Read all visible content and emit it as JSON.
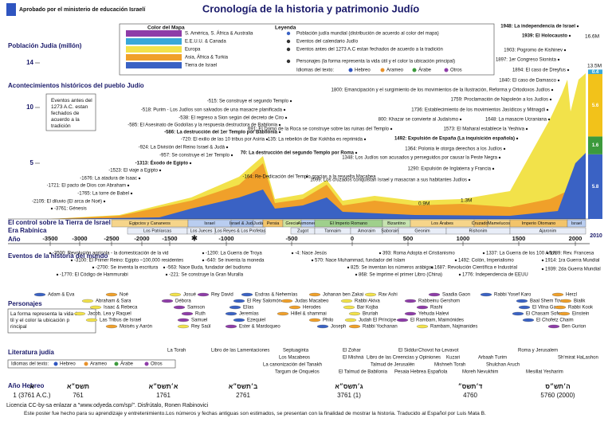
{
  "header": {
    "approval": "Aprobado por el ministerio de educación Israelí",
    "title": "Cronología de la historia y patrimonio Judío"
  },
  "legend": {
    "map_title": "Color del Mapa",
    "legend_title": "Leyenda",
    "regions": [
      {
        "label": "S. América, S. África & Australia",
        "color": "#8e3ca8"
      },
      {
        "label": "E.E.U.U. & Canada",
        "color": "#39a8d8"
      },
      {
        "label": "Europa",
        "color": "#f2e24a"
      },
      {
        "label": "Asia, África & Turkia",
        "color": "#f0a02a"
      },
      {
        "label": "Tierra de Israel",
        "color": "#3a62c4"
      }
    ],
    "items": [
      "Población judía mundial (distribución de acuerdo al color del mapa)",
      "Eventos del calendario Judío",
      "Eventos antes del 1273 A.C estan fechados de acuerdo a la tradición",
      "Personajes (la forma representa la vida útil y el color la ubicación principal)"
    ],
    "languages_label": "Idiomas del texto:",
    "languages": [
      {
        "label": "Hebreo",
        "color": "#2f55c0"
      },
      {
        "label": "Arameo",
        "color": "#e8912a"
      },
      {
        "label": "Árabe",
        "color": "#3c9a3c"
      },
      {
        "label": "Otros",
        "color": "#8e3ca8"
      }
    ]
  },
  "population": {
    "label": "Población Judía (millón)",
    "ticks": [
      14,
      10,
      5
    ],
    "labels": [
      "16.6M",
      "13.5M",
      "1.3M",
      "0.9M"
    ],
    "bar": [
      {
        "value": 5.8,
        "color": "#3a62c4"
      },
      {
        "value": 1.6,
        "color": "#3c9a3c"
      },
      {
        "value": 5.6,
        "color": "#f2c21a"
      },
      {
        "value": 0.4,
        "color": "#39a8d8"
      }
    ],
    "year": "2010"
  },
  "events": {
    "label": "Acontecimientos históricos del pueblo Judío",
    "note": "Eventos antes del 1273 A.C. estan fechados de acuerdo a la tradición",
    "items": [
      "1948: La independencia de Israel",
      "1939: El Holocausto",
      "1903: Pogromo de Kishinev",
      "1897: 1er Congreso Sionista",
      "1894: El caso de Dreyfus",
      "1840: El caso de Damasco",
      "1800: Emancipación y el surgimiento de los movimientos de la Ilustración, Reforma y Ortodoxos Judíos",
      "1759: Proclamación de Napoleón a los Judíos",
      "1736: Establecimiento de los movimientos Jasídicos y Mitnagdi",
      "1648: La masacre Ucraniana",
      "1573: El Maharal establece la Yeshiva",
      "1492: Expulsión de España (La inquisición española)",
      "1364: Polonia le otorga derechos a los Judíos",
      "1348: Los Judíos son acusados y perseguidos por causar la Peste Negra",
      "1290: Expulsión de Inglaterra y Francia",
      "1099: Los cruzados conquistan Israel y masacran a sus habitantes Judíos",
      "800: Khazar se convierte al Judaísmo",
      "691: El Domo de la Roca se construye sobre las ruinas del Templo",
      "135: La rebelión de Bar Kokhba es reprimida",
      "70: La destrucción del segundo Templo por Roma",
      "-164: Re-Dedicación del Templo gracias a la revuelta Macabea",
      "-515: Se construye el segundo Templo",
      "-518: Purim - Los Judíos son salvados de una masacre planificada",
      "-538: El regreso a Sion según del decreto de Ciro",
      "-585: El Asesinato de Godolías y la respuesta destructora de Babilonia",
      "-586: La destrucción del 1er Templo por Babilonia",
      "-720: El exilio de las 10 tribus por Asiria",
      "-924: La División del Reino Israel & Judá",
      "-957: Se construye el 1er Templo",
      "-1313: Éxodo de Egipto",
      "-1523: El viaje a Egipto",
      "-1676: La atadura de Isaac",
      "-1721: El pacto de Dios con Abraham",
      "-1765: La torre de Babel",
      "-2105: El diluvio (El arca de Noé)",
      "-3761: Génesis"
    ]
  },
  "control": {
    "label": "El control sobre la Tierra de Israel",
    "periods": [
      {
        "name": "Egipcios y Cananeos",
        "color": "#f6d58a"
      },
      {
        "name": "Israel",
        "color": "#b9cdf0"
      },
      {
        "name": "Israel & Judá",
        "color": "#a9c0ea"
      },
      {
        "name": "Judá",
        "color": "#c8d6f2"
      },
      {
        "name": "Persia",
        "color": "#f3c46a"
      },
      {
        "name": "Grecia",
        "color": "#cfe4a0"
      },
      {
        "name": "Asmoneos",
        "color": "#b9cdf0"
      },
      {
        "name": "El Imperio Romano",
        "color": "#9fd08c"
      },
      {
        "name": "Bizantino",
        "color": "#c6e3b0"
      },
      {
        "name": "Los Árabes",
        "color": "#f6d58a"
      },
      {
        "name": "Cruzados",
        "color": "#f3c46a"
      },
      {
        "name": "Mamelucos",
        "color": "#f6d58a"
      },
      {
        "name": "Imperio Otomano",
        "color": "#f3c46a"
      },
      {
        "name": "Israel",
        "color": "#b9cdf0"
      }
    ]
  },
  "eras": {
    "label": "Era Rabínica",
    "items": [
      "Los Patriarcas",
      "Los Jueces",
      "Los Reyes & Los Profetas",
      "Zugot",
      "Tannaim",
      "Amoraim",
      "Saboraim",
      "Geonim",
      "Rishonim",
      "Ajaronim"
    ]
  },
  "years": {
    "label": "Año",
    "ticks": [
      -3500,
      -3000,
      -2500,
      -2000,
      -1500,
      -1000,
      -500,
      0,
      500,
      1000,
      1500,
      2000
    ]
  },
  "world": {
    "label": "Eventos de la historia del mundo",
    "items": [
      "-3500: Revolución agrícola - la domesticación de la vid",
      "-3100: El Primer Reino: Egipto ~100,000 residentes",
      "-2700: Se inventa la escritura",
      "-1770: El Código de Hammurabi",
      "-1200: La Guerra de Troya",
      "-640: Se inventa la moneda",
      "-563: Nace Buda, fundador del budismo",
      "-221: Se construye la Gran Muralla",
      "-4: Nace Jesús",
      "570: Nace Muhammad, fundador del Islam",
      "825: Se inventan los números arábigos",
      "868: Se imprime el primer Libro (China)",
      "393: Roma Adopta el Cristianismo",
      "1337: La Guerra de los 100 Años",
      "1492: Colón, Imperialismo",
      "1687: Revolución Científica e Industrial",
      "1776: Independencia de EEUU",
      "1789: Rev. Francesa",
      "1914: 1ra Guerra Mundial",
      "1939: 2da Guerra Mundial"
    ]
  },
  "people": {
    "label": "Personajes",
    "note": "La forma representa la vida útil y el color la ubicación principal",
    "names": [
      "Adam & Eva",
      "Noé",
      "Josué",
      "Rey David",
      "Esdras & Nehemías",
      "Johanan ben Zakai",
      "Rav Ashi",
      "Saadia Gaon",
      "Rabbi Yosef Karo",
      "Herzl",
      "Abraham & Sara",
      "Débora",
      "El Rey Salomón",
      "Judas Macabeo",
      "Rabbi Akiva",
      "Rabbeinu Gershom",
      "Baal Shem Tov",
      "Bialik",
      "Isaac & Rebeca",
      "Samson",
      "Elías",
      "Herodes",
      "Bar Kojba",
      "Rashi",
      "El Vilna Gaon",
      "Rabbi Kook",
      "Jacob, Lea y Raquel",
      "Ruth",
      "Jeremías",
      "Hillel & shammai",
      "Bruriah",
      "Yehuda Halevi",
      "El Chasam Sofer",
      "Einstein",
      "Las Tribus de Israel",
      "Samuel",
      "Ezequiel",
      "Philo",
      "Judah El Príncipe",
      "El Rambam, Maimónides",
      "El Chofetz Chaim",
      "Moisés y Aarón",
      "Rey Saúl",
      "Ester & Mardoqueo",
      "Joseph",
      "Rabbi Yochanan",
      "Rambam, Najmanides",
      "Ben Gurion"
    ]
  },
  "literature": {
    "label": "Literatura judía",
    "items": [
      "La Torah",
      "Libro de las Lamentaciones",
      "Septuaginta",
      "El Zohar",
      "El Siddur",
      "Chovot ha-Levavot",
      "Roma y Jerusalem",
      "Los Macabeos",
      "El Mishná",
      "Libro de las Creencias y Opiniones",
      "Kuzari",
      "Arbaah Turim",
      "Sh'mirat HaLashon",
      "La canonización del Tanakh",
      "Talmud de Jerusalén",
      "Mishneh Torah",
      "Shulchan Aruch",
      "Targum de Onquelos",
      "El Talmud de Babilonia",
      "Pesaia Hebrea Española",
      "Moreh Nevukhim",
      "Mesillat Yesharim"
    ]
  },
  "hebrew_years": {
    "label": "Año Hebreo",
    "items": [
      {
        "hebrew": "א",
        "year": "1 (3761 A.C.)"
      },
      {
        "hebrew": "תשס״א",
        "year": "761"
      },
      {
        "hebrew": "א׳תשס״א",
        "year": "1761"
      },
      {
        "hebrew": "ב׳תשס״א",
        "year": "2761"
      },
      {
        "hebrew": "ג׳תשס״א",
        "year": "3761 (1)"
      },
      {
        "hebrew": "ד׳תשס״",
        "year": "4760"
      },
      {
        "hebrew": "ה׳תש״ס",
        "year": "5760 (2000)"
      }
    ]
  },
  "footer": [
    "Licencia CC-by-sa enlazar a \"www.odyeda.com/sp/\". Disfrútalo, Ronen Rabinovici",
    "Este poster fue hecho para su aprendizaje y entretenimiento.Los números y fechas antiguas son estimados, se presentan con la finalidad de mostrar la historia. Traducido al Español por Luis Mata B."
  ]
}
